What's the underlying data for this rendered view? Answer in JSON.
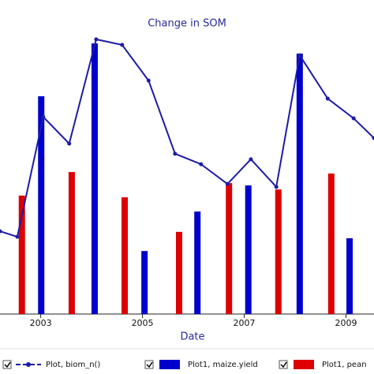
{
  "chart_data": {
    "type": "bar",
    "title": "Change in SOM",
    "x_label": "Date",
    "xlim": [
      2002.2,
      2009.55
    ],
    "xticks": [
      2003,
      2005,
      2007,
      2009
    ],
    "ylim": [
      0,
      100
    ],
    "series": [
      {
        "name": "Plot, biom_n()",
        "type": "line",
        "color": "#1c1ca8",
        "x": [
          2002.2,
          2002.54,
          2003.05,
          2003.56,
          2004.09,
          2004.6,
          2005.12,
          2005.64,
          2006.15,
          2006.67,
          2007.13,
          2007.63,
          2008.09,
          2008.64,
          2009.15,
          2009.55
        ],
        "values": [
          28.5,
          26.6,
          67.9,
          58.7,
          94.6,
          92.7,
          80.4,
          55.2,
          51.6,
          44.8,
          53.3,
          43.8,
          89.1,
          74.2,
          67.4,
          60.6
        ]
      },
      {
        "name": "Plot1, maize.yield",
        "type": "bar",
        "color": "#0000cc",
        "x": [
          2003.01,
          2004.06,
          2005.04,
          2006.08,
          2007.08,
          2008.09,
          2009.07
        ],
        "values": [
          75.0,
          93.2,
          21.7,
          35.3,
          44.3,
          89.7,
          26.1
        ]
      },
      {
        "name": "Plot1, pean",
        "type": "bar",
        "color": "#dd0000",
        "x": [
          2002.63,
          2003.61,
          2004.65,
          2005.72,
          2006.7,
          2007.67,
          2008.71
        ],
        "values": [
          40.8,
          48.9,
          40.2,
          28.3,
          45.1,
          42.9,
          48.4
        ]
      }
    ]
  }
}
